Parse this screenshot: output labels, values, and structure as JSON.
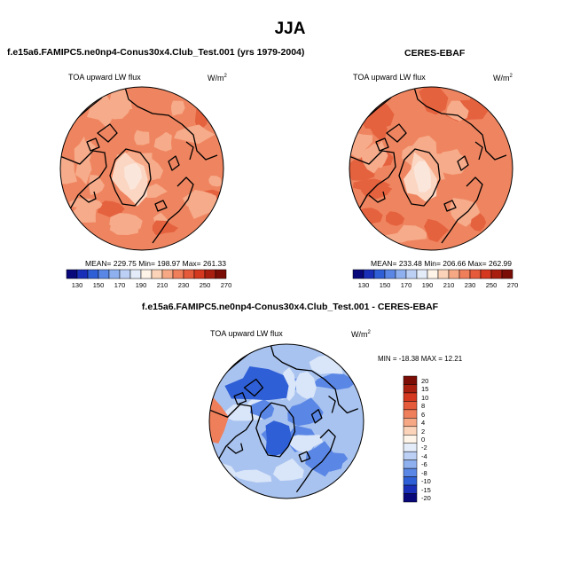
{
  "figure": {
    "season": "JJA"
  },
  "panels": [
    {
      "title": "f.e15a6.FAMIPC5.ne0np4-Conus30x4.Club_Test.001 (yrs 1979-2004)",
      "variable": "TOA upward LW flux",
      "units": "W/m",
      "units_sup": "2",
      "stats": "MEAN= 229.75  Min= 198.97  Max= 261.33"
    },
    {
      "title": "CERES-EBAF",
      "variable": "TOA upward LW flux",
      "units": "W/m",
      "units_sup": "2",
      "stats": "MEAN= 233.48  Min= 206.66  Max= 262.99"
    },
    {
      "title": "f.e15a6.FAMIPC5.ne0np4-Conus30x4.Club_Test.001 - CERES-EBAF",
      "variable": "TOA upward LW flux",
      "units": "W/m",
      "units_sup": "2",
      "stats": "MIN = -18.38  MAX =  12.21"
    }
  ],
  "colorbar_abs": {
    "labels": [
      "130",
      "150",
      "170",
      "190",
      "210",
      "230",
      "250",
      "270"
    ],
    "colors": [
      "#08087a",
      "#1a2fb8",
      "#2f5fd6",
      "#5a87e6",
      "#8fb0ef",
      "#bcd0f5",
      "#e4ecf9",
      "#fff4e8",
      "#fbd3b8",
      "#f6a885",
      "#ef7e5a",
      "#e55a3a",
      "#d4381f",
      "#a81f10",
      "#7a0e06"
    ]
  },
  "colorbar_diff": {
    "labels": [
      "20",
      "15",
      "10",
      "8",
      "6",
      "4",
      "2",
      "0",
      "-2",
      "-4",
      "-6",
      "-8",
      "-10",
      "-15",
      "-20"
    ],
    "colors": [
      "#7a0e06",
      "#a81f10",
      "#d4381f",
      "#e55a3a",
      "#ef7e5a",
      "#f6a885",
      "#fbd3b8",
      "#fff4e8",
      "#e4ecf9",
      "#bcd0f5",
      "#8fb0ef",
      "#5a87e6",
      "#2f5fd6",
      "#1a2fb8",
      "#08087a"
    ]
  },
  "map_colors": {
    "warm_base": "#ef8560",
    "warm_dark": "#e5623f",
    "warm_light": "#f6ab8a",
    "warm_pale": "#fbd6c2",
    "ice": "#fbe6db",
    "diff_base": "#a9c3f0",
    "diff_dark": "#5a87e6",
    "diff_deep": "#2f5fd6",
    "diff_light": "#d9e5f8",
    "diff_warm": "#ef7e5a",
    "coast": "#000000"
  }
}
